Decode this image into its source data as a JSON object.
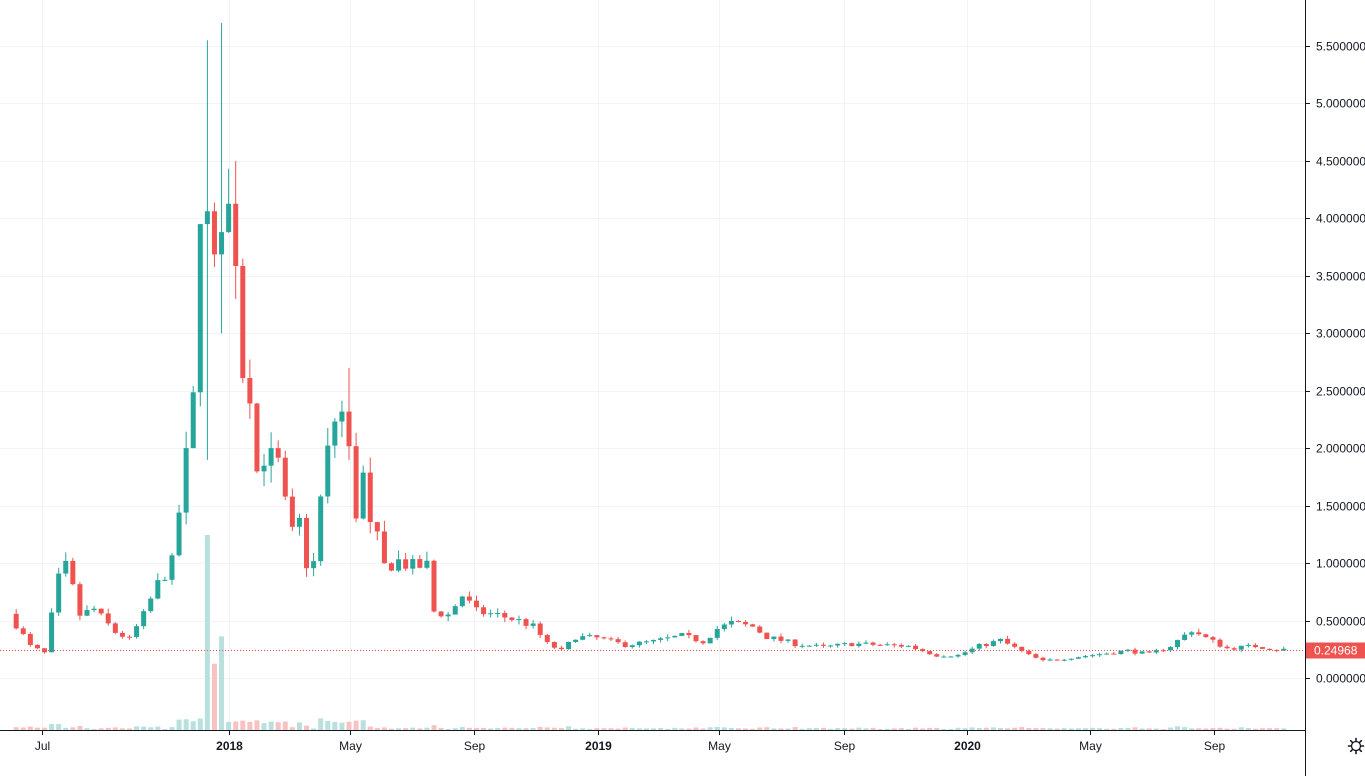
{
  "chart_data": {
    "type": "candlestick",
    "price_axis": {
      "ticks": [
        {
          "value": 5.5,
          "label": "5.500000"
        },
        {
          "value": 5.0,
          "label": "5.000000"
        },
        {
          "value": 4.5,
          "label": "4.500000"
        },
        {
          "value": 4.0,
          "label": "4.000000"
        },
        {
          "value": 3.5,
          "label": "3.500000"
        },
        {
          "value": 3.0,
          "label": "3.000000"
        },
        {
          "value": 2.5,
          "label": "2.500000"
        },
        {
          "value": 2.0,
          "label": "2.000000"
        },
        {
          "value": 1.5,
          "label": "1.500000"
        },
        {
          "value": 1.0,
          "label": "1.000000"
        },
        {
          "value": 0.5,
          "label": "0.500000"
        },
        {
          "value": 0.0,
          "label": "0.000000"
        }
      ],
      "ylim": [
        -0.45,
        5.9
      ]
    },
    "time_axis": {
      "ticks": [
        {
          "date": "2017-07-01",
          "label": "Jul",
          "bold": false
        },
        {
          "date": "2018-01-01",
          "label": "2018",
          "bold": true
        },
        {
          "date": "2018-05-01",
          "label": "May",
          "bold": false
        },
        {
          "date": "2018-09-01",
          "label": "Sep",
          "bold": false
        },
        {
          "date": "2019-01-01",
          "label": "2019",
          "bold": true
        },
        {
          "date": "2019-05-01",
          "label": "May",
          "bold": false
        },
        {
          "date": "2019-09-01",
          "label": "Sep",
          "bold": false
        },
        {
          "date": "2020-01-01",
          "label": "2020",
          "bold": true
        },
        {
          "date": "2020-05-01",
          "label": "May",
          "bold": false
        },
        {
          "date": "2020-09-01",
          "label": "Sep",
          "bold": false
        }
      ],
      "xlim": [
        "2017-05-20",
        "2020-11-30"
      ]
    },
    "last_price": {
      "value": 0.2496,
      "label": "0.24968"
    },
    "colors": {
      "up": "#26a69a",
      "down": "#ef5350",
      "up_volume": "#b9e0dc",
      "down_volume": "#f7c3c2",
      "grid": "#f0f3fa",
      "axis": "#131722",
      "last_price": "#ef5350"
    },
    "grid": true,
    "close_series": [
      [
        "2017-06-05",
        0.56
      ],
      [
        "2017-06-26",
        0.28
      ],
      [
        "2017-07-10",
        0.22
      ],
      [
        "2017-07-24",
        0.86
      ],
      [
        "2017-08-01",
        0.98
      ],
      [
        "2017-08-14",
        0.55
      ],
      [
        "2017-08-28",
        0.6
      ],
      [
        "2017-09-18",
        0.4
      ],
      [
        "2017-10-02",
        0.34
      ],
      [
        "2017-10-16",
        0.55
      ],
      [
        "2017-10-30",
        0.82
      ],
      [
        "2017-11-13",
        1.0
      ],
      [
        "2017-11-27",
        1.9
      ],
      [
        "2017-12-04",
        2.4
      ],
      [
        "2017-12-11",
        4.2
      ],
      [
        "2017-12-18",
        3.93
      ],
      [
        "2017-12-25",
        3.5
      ],
      [
        "2018-01-01",
        4.1
      ],
      [
        "2018-01-08",
        4.05
      ],
      [
        "2018-01-15",
        3.75
      ],
      [
        "2018-01-22",
        2.7
      ],
      [
        "2018-01-29",
        2.55
      ],
      [
        "2018-02-05",
        1.8
      ],
      [
        "2018-02-12",
        1.95
      ],
      [
        "2018-02-26",
        1.85
      ],
      [
        "2018-03-05",
        1.5
      ],
      [
        "2018-03-12",
        1.25
      ],
      [
        "2018-03-19",
        1.35
      ],
      [
        "2018-03-26",
        1.0
      ],
      [
        "2018-04-02",
        1.0
      ],
      [
        "2018-04-09",
        1.55
      ],
      [
        "2018-04-16",
        1.95
      ],
      [
        "2018-04-23",
        2.25
      ],
      [
        "2018-04-30",
        2.3
      ],
      [
        "2018-05-07",
        1.95
      ],
      [
        "2018-05-14",
        1.45
      ],
      [
        "2018-05-21",
        1.75
      ],
      [
        "2018-05-28",
        1.3
      ],
      [
        "2018-06-04",
        1.2
      ],
      [
        "2018-06-11",
        0.97
      ],
      [
        "2018-06-25",
        1.02
      ],
      [
        "2018-07-09",
        0.97
      ],
      [
        "2018-07-23",
        0.98
      ],
      [
        "2018-07-30",
        0.58
      ],
      [
        "2018-08-13",
        0.55
      ],
      [
        "2018-08-27",
        0.72
      ],
      [
        "2018-09-10",
        0.58
      ],
      [
        "2018-10-01",
        0.55
      ],
      [
        "2018-10-22",
        0.5
      ],
      [
        "2018-11-05",
        0.45
      ],
      [
        "2018-11-19",
        0.3
      ],
      [
        "2018-12-03",
        0.24
      ],
      [
        "2018-12-17",
        0.36
      ],
      [
        "2019-01-07",
        0.35
      ],
      [
        "2019-02-04",
        0.29
      ],
      [
        "2019-03-04",
        0.32
      ],
      [
        "2019-04-01",
        0.37
      ],
      [
        "2019-04-22",
        0.32
      ],
      [
        "2019-05-06",
        0.43
      ],
      [
        "2019-05-20",
        0.48
      ],
      [
        "2019-06-10",
        0.45
      ],
      [
        "2019-06-24",
        0.36
      ],
      [
        "2019-07-22",
        0.3
      ],
      [
        "2019-08-19",
        0.27
      ],
      [
        "2019-09-16",
        0.3
      ],
      [
        "2019-10-14",
        0.29
      ],
      [
        "2019-11-11",
        0.28
      ],
      [
        "2019-12-09",
        0.2
      ],
      [
        "2019-12-30",
        0.2
      ],
      [
        "2020-01-20",
        0.28
      ],
      [
        "2020-02-10",
        0.33
      ],
      [
        "2020-03-09",
        0.2
      ],
      [
        "2020-03-23",
        0.15
      ],
      [
        "2020-04-20",
        0.18
      ],
      [
        "2020-05-18",
        0.21
      ],
      [
        "2020-06-15",
        0.24
      ],
      [
        "2020-07-06",
        0.21
      ],
      [
        "2020-07-27",
        0.28
      ],
      [
        "2020-08-17",
        0.42
      ],
      [
        "2020-08-31",
        0.35
      ],
      [
        "2020-09-21",
        0.26
      ],
      [
        "2020-10-19",
        0.28
      ],
      [
        "2020-11-09",
        0.25
      ]
    ],
    "spikes": [
      {
        "date": "2017-12-11",
        "low": 1.9,
        "high": 5.55
      },
      {
        "date": "2017-12-25",
        "low": 3.0,
        "high": 5.7
      },
      {
        "date": "2018-01-08",
        "low": 3.3,
        "high": 4.5
      },
      {
        "date": "2018-04-30",
        "low": 1.9,
        "high": 2.7
      }
    ],
    "volume_spikes": [
      {
        "date": "2017-12-11",
        "level": 1.0
      },
      {
        "date": "2017-12-25",
        "level": 0.48
      },
      {
        "date": "2017-12-18",
        "level": 0.34
      }
    ]
  }
}
